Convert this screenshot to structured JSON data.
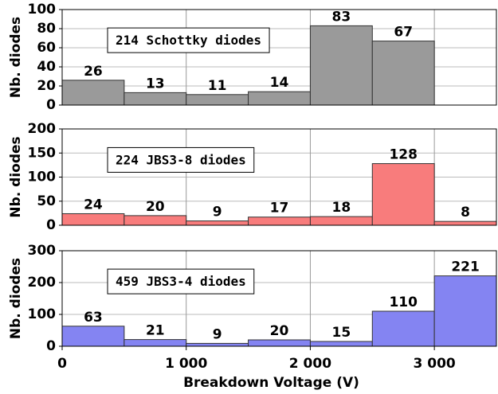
{
  "chart_data": [
    {
      "type": "histogram",
      "ylabel": "Nb. diodes",
      "annotation": "214 Schottky diodes",
      "bins": [
        0,
        500,
        1000,
        1500,
        2000,
        2500,
        3000
      ],
      "values": [
        26,
        13,
        11,
        14,
        83,
        67
      ],
      "color": "#9a9a9a",
      "xlim": [
        0,
        3500
      ],
      "ylim": [
        0,
        100
      ],
      "yticks": [
        0,
        20,
        40,
        60,
        80,
        100
      ],
      "grid": true
    },
    {
      "type": "histogram",
      "ylabel": "Nb. diodes",
      "annotation": "224 JBS3-8 diodes",
      "bins": [
        0,
        500,
        1000,
        1500,
        2000,
        2500,
        3000,
        3500
      ],
      "values": [
        24,
        20,
        9,
        17,
        18,
        128,
        8
      ],
      "color": "#f87c7c",
      "xlim": [
        0,
        3500
      ],
      "ylim": [
        0,
        200
      ],
      "yticks": [
        0,
        50,
        100,
        150,
        200
      ],
      "grid": true
    },
    {
      "type": "histogram",
      "ylabel": "Nb. diodes",
      "annotation": "459 JBS3-4 diodes",
      "bins": [
        0,
        500,
        1000,
        1500,
        2000,
        2500,
        3000,
        3500
      ],
      "values": [
        63,
        21,
        9,
        20,
        15,
        110,
        221
      ],
      "color": "#8484f2",
      "xlim": [
        0,
        3500
      ],
      "ylim": [
        0,
        300
      ],
      "yticks": [
        0,
        100,
        200,
        300
      ],
      "grid": true,
      "xlabel": "Breakdown Voltage (V)",
      "xticks": [
        0,
        {
          "value": 1000,
          "label": "1 000"
        },
        {
          "value": 2000,
          "label": "2 000"
        },
        {
          "value": 3000,
          "label": "3 000"
        }
      ]
    }
  ]
}
